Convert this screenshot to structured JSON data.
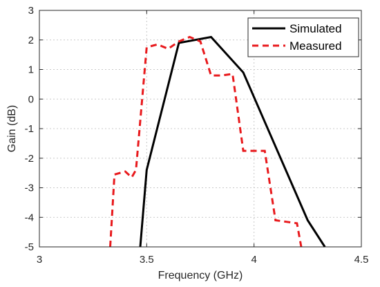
{
  "chart_data": {
    "type": "line",
    "title": "",
    "xlabel": "Frequency (GHz)",
    "ylabel": "Gain (dB)",
    "xlim": [
      3,
      4.5
    ],
    "ylim": [
      -5,
      3
    ],
    "xticks": [
      "3",
      "3.5",
      "4",
      "4.5"
    ],
    "yticks": [
      "-5",
      "-4",
      "-3",
      "-2",
      "-1",
      "0",
      "1",
      "2",
      "3"
    ],
    "grid": true,
    "legend_position": "top-right",
    "series": [
      {
        "name": "Simulated",
        "color": "#000000",
        "style": "solid",
        "x": [
          3.47,
          3.5,
          3.65,
          3.8,
          3.95,
          4.25,
          4.33
        ],
        "y": [
          -5.0,
          -2.4,
          1.9,
          2.1,
          0.9,
          -4.1,
          -5.0
        ]
      },
      {
        "name": "Measured",
        "color": "#e8191c",
        "style": "dashed",
        "x": [
          3.33,
          3.33,
          3.35,
          3.4,
          3.43,
          3.45,
          3.5,
          3.55,
          3.6,
          3.65,
          3.7,
          3.75,
          3.8,
          3.85,
          3.9,
          3.95,
          4.0,
          4.05,
          4.1,
          4.15,
          4.2,
          4.22
        ],
        "y": [
          -5.0,
          -5.0,
          -2.55,
          -2.45,
          -2.65,
          -2.4,
          1.75,
          1.85,
          1.7,
          1.95,
          2.1,
          1.95,
          0.8,
          0.8,
          0.85,
          -1.75,
          -1.75,
          -1.75,
          -4.1,
          -4.15,
          -4.2,
          -5.0
        ]
      }
    ]
  }
}
